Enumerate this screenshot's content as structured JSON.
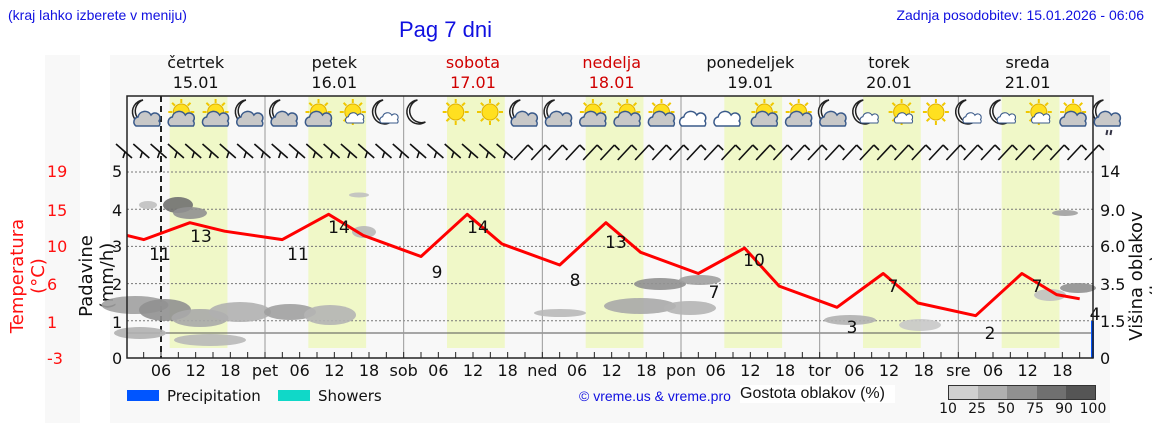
{
  "header": {
    "region_hint": "(kraj lahko izberete v meniju)",
    "title": "Pag 7 dni",
    "last_update": "Zadnja posodobitev: 15.01.2026 - 06:06"
  },
  "days": [
    {
      "name": "četrtek",
      "date": "15.01",
      "weekend": false
    },
    {
      "name": "petek",
      "date": "16.01",
      "weekend": false
    },
    {
      "name": "sobota",
      "date": "17.01",
      "weekend": true
    },
    {
      "name": "nedelja",
      "date": "18.01",
      "weekend": true
    },
    {
      "name": "ponedeljek",
      "date": "19.01",
      "weekend": false
    },
    {
      "name": "torek",
      "date": "20.01",
      "weekend": false
    },
    {
      "name": "sreda",
      "date": "21.01",
      "weekend": false
    }
  ],
  "axes": {
    "left_temp_label": "Temperatura (°C)",
    "left_temp_ticks": [
      "19",
      "15",
      "10",
      "6",
      "1",
      "-3"
    ],
    "left_precip_label": "Padavine (mm/h)",
    "left_precip_ticks": [
      "5",
      "4",
      "3",
      "2",
      "1",
      "0"
    ],
    "right_label": "Višina oblakov (km)",
    "right_ticks": [
      "14",
      "9.0",
      "6.0",
      "3.5",
      "1.5",
      "0"
    ],
    "x_ticks": [
      "06",
      "12",
      "18",
      "pet",
      "06",
      "12",
      "18",
      "sob",
      "06",
      "12",
      "18",
      "ned",
      "06",
      "12",
      "18",
      "pon",
      "06",
      "12",
      "18",
      "tor",
      "06",
      "12",
      "18",
      "sre",
      "06",
      "12",
      "18"
    ]
  },
  "legend": {
    "precipitation_label": "Precipitation",
    "precipitation_color": "#0055ff",
    "showers_label": "Showers",
    "showers_color": "#10d8c8",
    "copyright": "© vreme.us & vreme.pro",
    "cloud_density_label": "Gostota oblakov (%)",
    "cloud_density_ticks": [
      "10",
      "25",
      "50",
      "75",
      "90",
      "100"
    ],
    "cloud_density_colors": [
      "#d0d0d0",
      "#b0b0b0",
      "#909090",
      "#707070",
      "#555555"
    ]
  },
  "colors": {
    "temperature_line": "#ff0000",
    "daytime_band": "#f0f8c8",
    "weekend_text": "#d00000",
    "link_blue": "#1010e0"
  },
  "weather_icons": [
    "moon-cloud",
    "sun-cloud",
    "sun-cloud",
    "moon-cloud",
    "moon-cloud",
    "sun-cloud",
    "sun-cloud-small",
    "moon-cloud-small",
    "moon",
    "sun",
    "sun",
    "moon-cloud",
    "moon-cloud",
    "sun-cloud",
    "sun-cloud",
    "sun-cloud",
    "cloud",
    "cloud",
    "sun-cloud",
    "sun-cloud",
    "moon-cloud",
    "moon-cloud-small",
    "sun-cloud-small",
    "sun",
    "moon-cloud-small",
    "moon-cloud-small",
    "sun-cloud-small",
    "sun-cloud",
    "moon-cloud-rain"
  ],
  "chart_data": {
    "type": "line",
    "title": "Pag 7 dni",
    "xlabel": "",
    "ylabel": "Temperatura (°C)",
    "ylim": [
      -3,
      19
    ],
    "x": [
      "15.01 00",
      "15.01 06",
      "15.01 12",
      "15.01 18",
      "16.01 06",
      "16.01 12",
      "16.01 18",
      "17.01 06",
      "17.01 12",
      "17.01 18",
      "18.01 06",
      "18.01 12",
      "18.01 18",
      "19.01 06",
      "19.01 12",
      "19.01 18",
      "20.01 06",
      "20.01 12",
      "20.01 18",
      "21.01 06",
      "21.01 12",
      "21.01 18",
      "22.01 00"
    ],
    "series": [
      {
        "name": "Temperatura",
        "values": [
          11.5,
          11,
          13,
          12,
          11,
          14,
          11.5,
          9,
          14,
          10.5,
          8,
          13,
          9.5,
          7,
          10,
          5.5,
          3,
          7,
          3.5,
          2,
          7,
          4.5,
          4
        ]
      }
    ],
    "annotations": [
      {
        "label": "11",
        "x": "15.01 06"
      },
      {
        "label": "13",
        "x": "15.01 14"
      },
      {
        "label": "11",
        "x": "16.01 06"
      },
      {
        "label": "14",
        "x": "16.01 14"
      },
      {
        "label": "9",
        "x": "17.01 06"
      },
      {
        "label": "14",
        "x": "17.01 14"
      },
      {
        "label": "8",
        "x": "18.01 06"
      },
      {
        "label": "13",
        "x": "18.01 14"
      },
      {
        "label": "7",
        "x": "19.01 06"
      },
      {
        "label": "10",
        "x": "19.01 14"
      },
      {
        "label": "3",
        "x": "20.01 06"
      },
      {
        "label": "7",
        "x": "20.01 14"
      },
      {
        "label": "2",
        "x": "21.01 06"
      },
      {
        "label": "7",
        "x": "21.01 14"
      },
      {
        "label": "4",
        "x": "22.01 00"
      }
    ],
    "secondary_axes": {
      "precipitation_mm_h": {
        "range": [
          0,
          5
        ],
        "ticks": [
          0,
          1,
          2,
          3,
          4,
          5
        ],
        "values": "≈0 throughout; small bar at end"
      },
      "cloud_height_km": {
        "ticks": [
          0,
          1.5,
          3.5,
          6.0,
          9.0,
          14
        ]
      }
    },
    "grid": true,
    "legend_position": "bottom"
  }
}
